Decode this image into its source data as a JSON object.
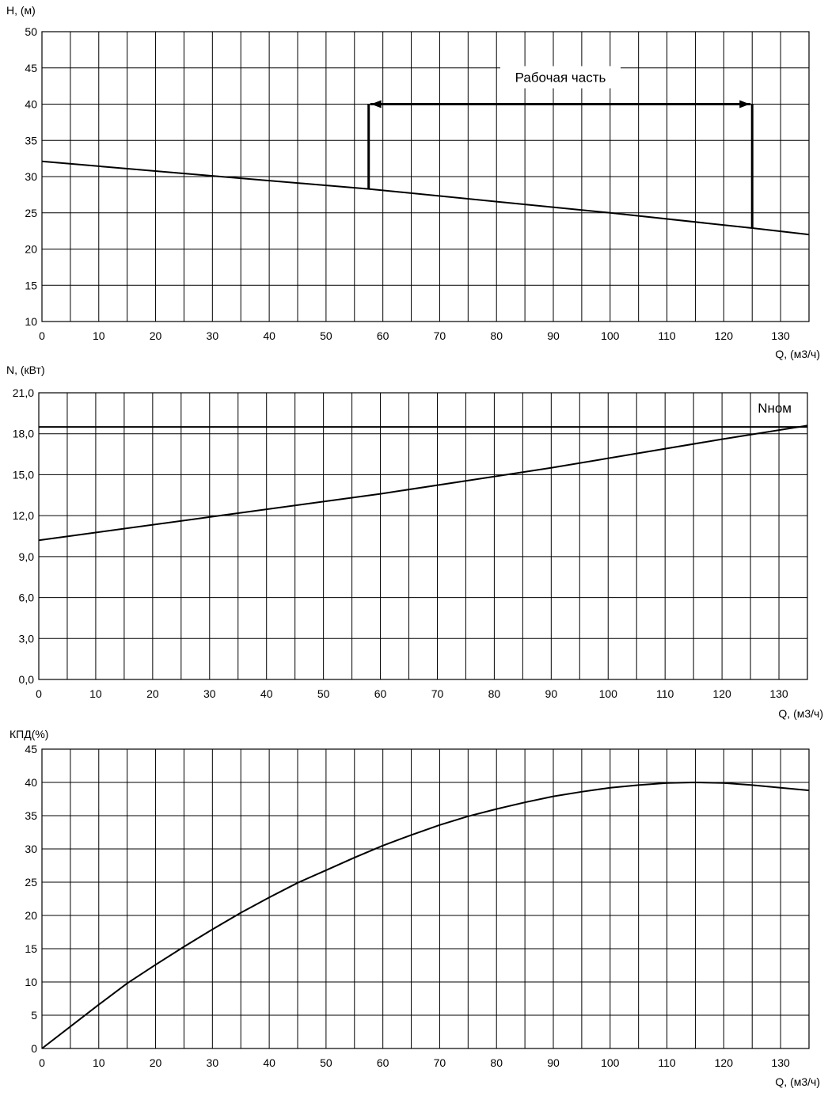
{
  "chart_data": [
    {
      "id": "head",
      "type": "line",
      "ylabel": "H, (м)",
      "xlabel": "Q, (м3/ч)",
      "xlim": [
        0,
        135
      ],
      "ylim": [
        10,
        50
      ],
      "x_ticks": [
        0,
        10,
        20,
        30,
        40,
        50,
        60,
        70,
        80,
        90,
        100,
        110,
        120,
        130
      ],
      "x_tick_labels": [
        "0",
        "10",
        "20",
        "30",
        "40",
        "50",
        "60",
        "70",
        "80",
        "90",
        "100",
        "110",
        "120",
        "130"
      ],
      "y_ticks": [
        10,
        15,
        20,
        25,
        30,
        35,
        40,
        45,
        50
      ],
      "y_tick_labels": [
        "10",
        "15",
        "20",
        "25",
        "30",
        "35",
        "40",
        "45",
        "50"
      ],
      "x_grid_step": 5,
      "grid": true,
      "series": [
        {
          "x": [
            0,
            30,
            57.5,
            100,
            125,
            135
          ],
          "y": [
            32.1,
            30.1,
            28.3,
            25.0,
            22.9,
            22.0
          ]
        }
      ],
      "annotations": [
        {
          "type": "bracket",
          "text": "Рабочая часть",
          "x_start": 57.5,
          "x_end": 125,
          "y_top": 40,
          "y_start": 28.3,
          "y_end": 22.9
        }
      ]
    },
    {
      "id": "power",
      "type": "line",
      "ylabel": "N, (кВт)",
      "xlabel": "Q, (м3/ч)",
      "xlim": [
        0,
        135
      ],
      "ylim": [
        0,
        21
      ],
      "x_ticks": [
        0,
        10,
        20,
        30,
        40,
        50,
        60,
        70,
        80,
        90,
        100,
        110,
        120,
        130
      ],
      "x_tick_labels": [
        "0",
        "10",
        "20",
        "30",
        "40",
        "50",
        "60",
        "70",
        "80",
        "90",
        "100",
        "110",
        "120",
        "130"
      ],
      "y_ticks": [
        0,
        3,
        6,
        9,
        12,
        15,
        18,
        21
      ],
      "y_tick_labels": [
        "0,0",
        "3,0",
        "6,0",
        "9,0",
        "12,0",
        "15,0",
        "18,0",
        "21,0"
      ],
      "x_grid_step": 5,
      "grid": true,
      "series": [
        {
          "x": [
            0,
            30,
            60,
            90,
            120,
            135
          ],
          "y": [
            10.2,
            11.9,
            13.6,
            15.5,
            17.6,
            18.6
          ]
        }
      ],
      "reference_lines": [
        {
          "y": 18.5,
          "label": "Nном"
        }
      ]
    },
    {
      "id": "efficiency",
      "type": "line",
      "ylabel": "КПД(%)",
      "xlabel": "Q, (м3/ч)",
      "xlim": [
        0,
        135
      ],
      "ylim": [
        0,
        45
      ],
      "x_ticks": [
        0,
        10,
        20,
        30,
        40,
        50,
        60,
        70,
        80,
        90,
        100,
        110,
        120,
        130
      ],
      "x_tick_labels": [
        "0",
        "10",
        "20",
        "30",
        "40",
        "50",
        "60",
        "70",
        "80",
        "90",
        "100",
        "110",
        "120",
        "130"
      ],
      "y_ticks": [
        0,
        5,
        10,
        15,
        20,
        25,
        30,
        35,
        40,
        45
      ],
      "y_tick_labels": [
        "0",
        "5",
        "10",
        "15",
        "20",
        "25",
        "30",
        "35",
        "40",
        "45"
      ],
      "x_grid_step": 5,
      "grid": true,
      "series": [
        {
          "x": [
            0,
            5,
            10,
            15,
            20,
            25,
            30,
            35,
            40,
            45,
            50,
            55,
            60,
            65,
            70,
            75,
            80,
            85,
            90,
            95,
            100,
            105,
            110,
            115,
            120,
            125,
            130,
            135
          ],
          "y": [
            0,
            3.3,
            6.6,
            9.8,
            12.6,
            15.3,
            17.9,
            20.4,
            22.7,
            24.9,
            26.8,
            28.7,
            30.5,
            32.1,
            33.6,
            34.9,
            36.0,
            37.0,
            37.9,
            38.6,
            39.2,
            39.6,
            39.9,
            40.0,
            39.9,
            39.6,
            39.2,
            38.8
          ]
        }
      ]
    }
  ]
}
